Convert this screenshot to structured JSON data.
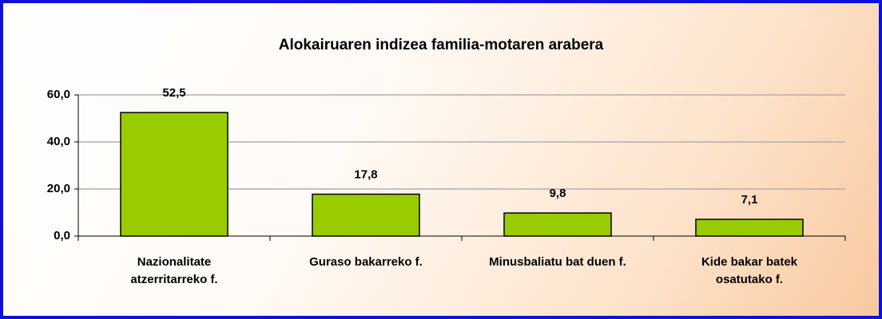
{
  "chart_data": {
    "type": "bar",
    "title": "Alokairuaren indizea familia-motaren arabera",
    "categories": [
      "Nazionalitate atzerritarreko f.",
      "Guraso bakarreko f.",
      "Minusbaliatu bat duen f.",
      "Kide bakar batek osatutako f."
    ],
    "values": [
      52.5,
      17.8,
      9.8,
      7.1
    ],
    "value_labels": [
      "52,5",
      "17,8",
      "9,8",
      "7,1"
    ],
    "color": "#99cc00",
    "ylim": [
      0,
      60
    ],
    "yticks": [
      {
        "value": 0,
        "label": "0,0"
      },
      {
        "value": 20,
        "label": "20,0"
      },
      {
        "value": 40,
        "label": "40,0"
      },
      {
        "value": 60,
        "label": "60,0"
      }
    ],
    "grid": true
  }
}
